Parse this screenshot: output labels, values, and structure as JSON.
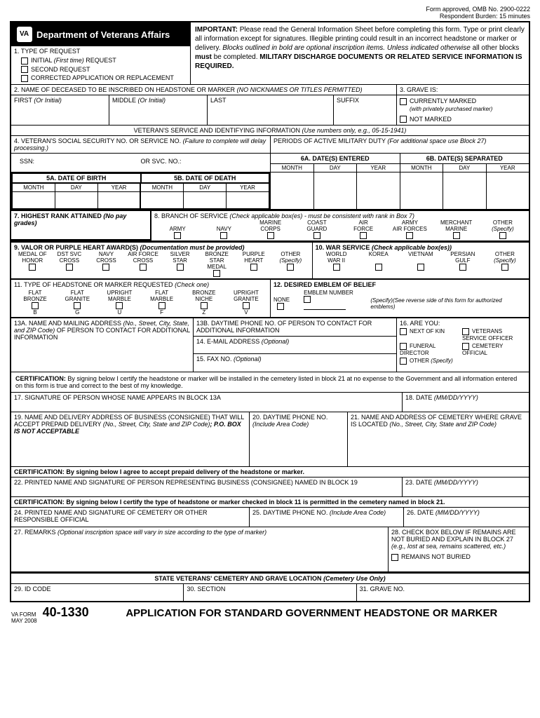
{
  "meta": {
    "omb": "Form approved, OMB No. 2900-0222",
    "burden": "Respondent Burden:  15 minutes"
  },
  "dept": "Department of Veterans Affairs",
  "important": {
    "label": "IMPORTANT:",
    "text1": "Please read the General Information Sheet before completing this form.  Type or print clearly all information except for signatures.  Illegible printing could result in an incorrect headstone or marker or delivery.",
    "text2": "Blocks outlined in bold are optional inscription items.  Unless indicated otherwise",
    "text3": "all other blocks",
    "text4": "must",
    "text5": "be completed.",
    "text6": "MILITARY DISCHARGE DOCUMENTS OR RELATED SERVICE INFORMATION IS REQUIRED."
  },
  "block1": {
    "title": "1. TYPE OF REQUEST",
    "opt1a": "INITIAL",
    "opt1b": "(First time)",
    "opt1c": "REQUEST",
    "opt2": "SECOND REQUEST",
    "opt3": "CORRECTED APPLICATION OR REPLACEMENT"
  },
  "block2": {
    "title": "2. NAME OF DECEASED TO BE INSCRIBED ON HEADSTONE OR MARKER",
    "note": "(NO NICKNAMES OR TITLES PERMITTED)",
    "first": "FIRST",
    "first_note": "(Or Initial)",
    "middle": "MIDDLE",
    "middle_note": "(Or Initial)",
    "last": "LAST",
    "suffix": "SUFFIX"
  },
  "block3": {
    "title": "3. GRAVE IS:",
    "opt1": "CURRENTLY MARKED",
    "opt1_note": "(with privately purchased marker)",
    "opt2": "NOT MARKED"
  },
  "vet_section": "VETERAN'S SERVICE AND IDENTIFYING INFORMATION",
  "vet_note": "(Use numbers only, e.g., 05-15-1941)",
  "block4": {
    "title": "4. VETERAN'S SOCIAL SECURITY NO. OR SERVICE NO.",
    "note": "(Failure to complete will delay processing.)",
    "ssn": "SSN:",
    "svc": "OR SVC. NO.:"
  },
  "periods": {
    "title": "PERIODS OF ACTIVE MILITARY DUTY",
    "note": "(For additional space use Block 27)",
    "a": "6A. DATE(S) ENTERED",
    "b": "6B. DATE(S) SEPARATED",
    "month": "MONTH",
    "day": "DAY",
    "year": "YEAR"
  },
  "block5": {
    "a": "5A. DATE OF BIRTH",
    "b": "5B. DATE OF DEATH",
    "month": "MONTH",
    "day": "DAY",
    "year": "YEAR"
  },
  "block7": {
    "title": "7. HIGHEST RANK ATTAINED",
    "note": "(No pay grades)"
  },
  "block8": {
    "title": "8. BRANCH OF SERVICE",
    "note": "(Check  applicable box(es) - must be consistent with rank in Box 7)",
    "opts": [
      "ARMY",
      "NAVY",
      "MARINE CORPS",
      "COAST GUARD",
      "AIR FORCE",
      "ARMY AIR FORCES",
      "MERCHANT MARINE",
      "OTHER"
    ],
    "specify": "(Specify)"
  },
  "block9": {
    "title": "9. VALOR OR PURPLE HEART AWARD(S)",
    "note": "(Documentation must be provided)",
    "opts": [
      "MEDAL OF HONOR",
      "DST SVC CROSS",
      "NAVY CROSS",
      "AIR FORCE CROSS",
      "SILVER STAR",
      "BRONZE STAR MEDAL",
      "PURPLE HEART",
      "OTHER"
    ],
    "specify": "(Specify)"
  },
  "block10": {
    "title": "10. WAR SERVICE",
    "note": "(Check applicable box(es))",
    "opts": [
      "WORLD WAR II",
      "KOREA",
      "VIETNAM",
      "PERSIAN GULF",
      "OTHER"
    ],
    "specify": "(Specify)"
  },
  "block11": {
    "title": "11. TYPE OF HEADSTONE OR MARKER REQUESTED",
    "note": "(Check one)",
    "opts": [
      {
        "l1": "FLAT",
        "l2": "BRONZE",
        "code": "B"
      },
      {
        "l1": "FLAT",
        "l2": "GRANITE",
        "code": "G"
      },
      {
        "l1": "UPRIGHT",
        "l2": "MARBLE",
        "code": "U"
      },
      {
        "l1": "FLAT",
        "l2": "MARBLE",
        "code": "F"
      },
      {
        "l1": "BRONZE",
        "l2": "NICHE",
        "code": "Z"
      },
      {
        "l1": "UPRIGHT",
        "l2": "GRANITE",
        "code": "V"
      }
    ]
  },
  "block12": {
    "title": "12. DESIRED EMBLEM OF BELIEF",
    "num": "EMBLEM NUMBER",
    "none": "NONE",
    "note": "(Specify)(See reverse side of this form for authorized emblems)"
  },
  "block13a": {
    "title": "13A. NAME AND MAILING ADDRESS",
    "note": "(No., Street, City, State, and ZIP Code)",
    "text": "OF PERSON TO CONTACT FOR ADDITIONAL INFORMATION"
  },
  "block13b": "13B.  DAYTIME PHONE NO. OF PERSON TO CONTACT FOR ADDITIONAL INFORMATION",
  "block14": {
    "title": "14.  E-MAIL ADDRESS",
    "note": "(Optional)"
  },
  "block15": {
    "title": "15.  FAX NO.",
    "note": "(Optional)"
  },
  "block16": {
    "title": "16. ARE YOU:",
    "opts": [
      "NEXT OF KIN",
      "VETERANS SERVICE OFFICER",
      "FUNERAL DIRECTOR",
      "CEMETERY OFFICIAL",
      "OTHER"
    ],
    "specify": "(Specify)"
  },
  "cert1": {
    "label": "CERTIFICATION:",
    "text": "By signing below I certify the headstone or marker will be installed in the cemetery listed in block 21 at no expense to the Government and all information entered on this form is true and correct to the best of my knowledge."
  },
  "block17": "17.  SIGNATURE OF PERSON WHOSE NAME APPEARS IN BLOCK 13A",
  "block18": {
    "title": "18. DATE",
    "note": "(MM/DD/YYYY)"
  },
  "block19": {
    "title": "19.  NAME AND DELIVERY ADDRESS OF BUSINESS (CONSIGNEE) THAT WILL ACCEPT PREPAID DELIVERY",
    "note": "(No., Street, City, State and ZIP Code)",
    "bold": "; P.O. BOX IS NOT ACCEPTABLE"
  },
  "block20": {
    "title": "20.  DAYTIME PHONE NO.",
    "note": "(Include Area Code)"
  },
  "block21": {
    "title": "21.  NAME AND ADDRESS OF CEMETERY WHERE GRAVE IS LOCATED",
    "note": "(No., Street, City, State and ZIP Code)"
  },
  "cert2": {
    "label": "CERTIFICATION:",
    "text": "By signing below I agree to accept prepaid delivery of the headstone or marker."
  },
  "block22": "22.  PRINTED NAME AND SIGNATURE OF PERSON REPRESENTING BUSINESS (CONSIGNEE) NAMED IN BLOCK 19",
  "block23": {
    "title": "23. DATE",
    "note": "(MM/DD/YYYY)"
  },
  "cert3": {
    "label": "CERTIFICATION:",
    "text": "By signing below I certify the type of headstone or marker checked in block 11 is permitted in the cemetery named in block 21."
  },
  "block24": "24. PRINTED NAME AND SIGNATURE OF CEMETERY OR OTHER RESPONSIBLE OFFICIAL",
  "block25": {
    "title": "25.  DAYTIME PHONE NO.",
    "note": "(Include Area Code)"
  },
  "block26": {
    "title": "26. DATE",
    "note": "(MM/DD/YYYY)"
  },
  "block27": {
    "title": "27. REMARKS",
    "note": "(Optional inscription space will vary in size according to the type of marker)"
  },
  "block28": {
    "title": "28. CHECK BOX BELOW IF REMAINS ARE NOT BURIED AND EXPLAIN IN BLOCK 27",
    "note": "(e.g., lost at sea, remains scattered, etc.)",
    "opt": "REMAINS NOT BURIED"
  },
  "state_section": {
    "title": "STATE VETERANS' CEMETERY AND GRAVE LOCATION",
    "note": "(Cemetery Use Only)"
  },
  "block29": "29. ID CODE",
  "block30": "30. SECTION",
  "block31": "31. GRAVE NO.",
  "footer": {
    "va": "VA FORM",
    "date": "MAY 2008",
    "num": "40-1330",
    "title": "APPLICATION FOR STANDARD GOVERNMENT HEADSTONE OR MARKER"
  }
}
